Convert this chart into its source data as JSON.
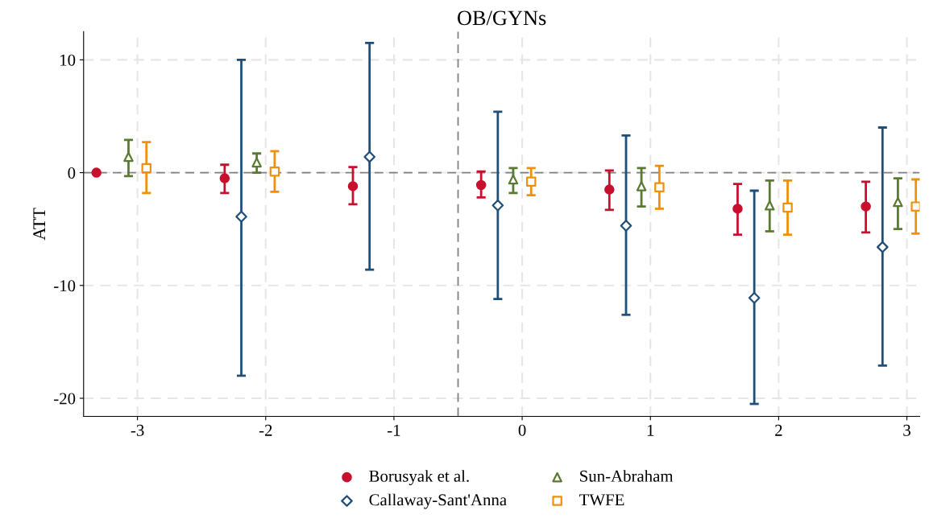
{
  "chart_data": {
    "type": "scatter",
    "title": "OB/GYNs",
    "ylabel": "ATT",
    "xlim": [
      -3.42,
      3.1
    ],
    "xticks": [
      -3,
      -2,
      -1,
      0,
      1,
      2,
      3
    ],
    "ylim": [
      -21.6,
      12.5
    ],
    "yticks": [
      -20,
      -10,
      0,
      10
    ],
    "grid": true,
    "legend": "bottom",
    "ref_lines": [
      {
        "axis": "y",
        "value": 0,
        "color": "#808080",
        "line_style": "dashed"
      },
      {
        "axis": "x",
        "value": -0.5,
        "color": "#808080",
        "line_style": "dashed"
      }
    ],
    "series": [
      {
        "name": "Borusyak et al.",
        "color": "#c8102e",
        "marker": "circle",
        "x": [
          -3.32,
          -2.32,
          -1.32,
          -0.32,
          0.68,
          1.68,
          2.68
        ],
        "values": [
          0,
          -0.5,
          -1.2,
          -1.1,
          -1.5,
          -3.2,
          -3.0
        ],
        "errors": [
          null,
          [
            -1.8,
            0.7
          ],
          [
            -2.8,
            0.5
          ],
          [
            -2.2,
            0.1
          ],
          [
            -3.3,
            0.2
          ],
          [
            -5.5,
            -1.0
          ],
          [
            -5.3,
            -0.8
          ]
        ]
      },
      {
        "name": "Callaway-Sant'Anna",
        "color": "#1f4e79",
        "marker": "diamond",
        "x": [
          -2.19,
          -1.19,
          -0.19,
          0.81,
          1.81,
          2.81
        ],
        "values": [
          -3.9,
          1.4,
          -2.9,
          -4.7,
          -11.1,
          -6.6
        ],
        "errors": [
          [
            -18.0,
            10.0
          ],
          [
            -8.6,
            11.5
          ],
          [
            -11.2,
            5.4
          ],
          [
            -12.6,
            3.3
          ],
          [
            -20.5,
            -1.6
          ],
          [
            -17.1,
            4.0
          ]
        ]
      },
      {
        "name": "Sun-Abraham",
        "color": "#5a7a32",
        "marker": "triangle",
        "x": [
          -3.07,
          -2.07,
          -0.07,
          0.93,
          1.93,
          2.93
        ],
        "values": [
          1.4,
          0.9,
          -0.6,
          -1.2,
          -2.9,
          -2.6
        ],
        "errors": [
          [
            -0.3,
            2.9
          ],
          [
            0.0,
            1.7
          ],
          [
            -1.8,
            0.4
          ],
          [
            -3.0,
            0.4
          ],
          [
            -5.2,
            -0.7
          ],
          [
            -5.0,
            -0.5
          ]
        ]
      },
      {
        "name": "TWFE",
        "color": "#f0900a",
        "marker": "square",
        "x": [
          -2.93,
          -1.93,
          0.07,
          1.07,
          2.07,
          3.07
        ],
        "values": [
          0.4,
          0.1,
          -0.8,
          -1.3,
          -3.1,
          -3.0
        ],
        "errors": [
          [
            -1.8,
            2.7
          ],
          [
            -1.7,
            1.9
          ],
          [
            -2.0,
            0.4
          ],
          [
            -3.2,
            0.6
          ],
          [
            -5.5,
            -0.7
          ],
          [
            -5.4,
            -0.6
          ]
        ]
      }
    ]
  }
}
